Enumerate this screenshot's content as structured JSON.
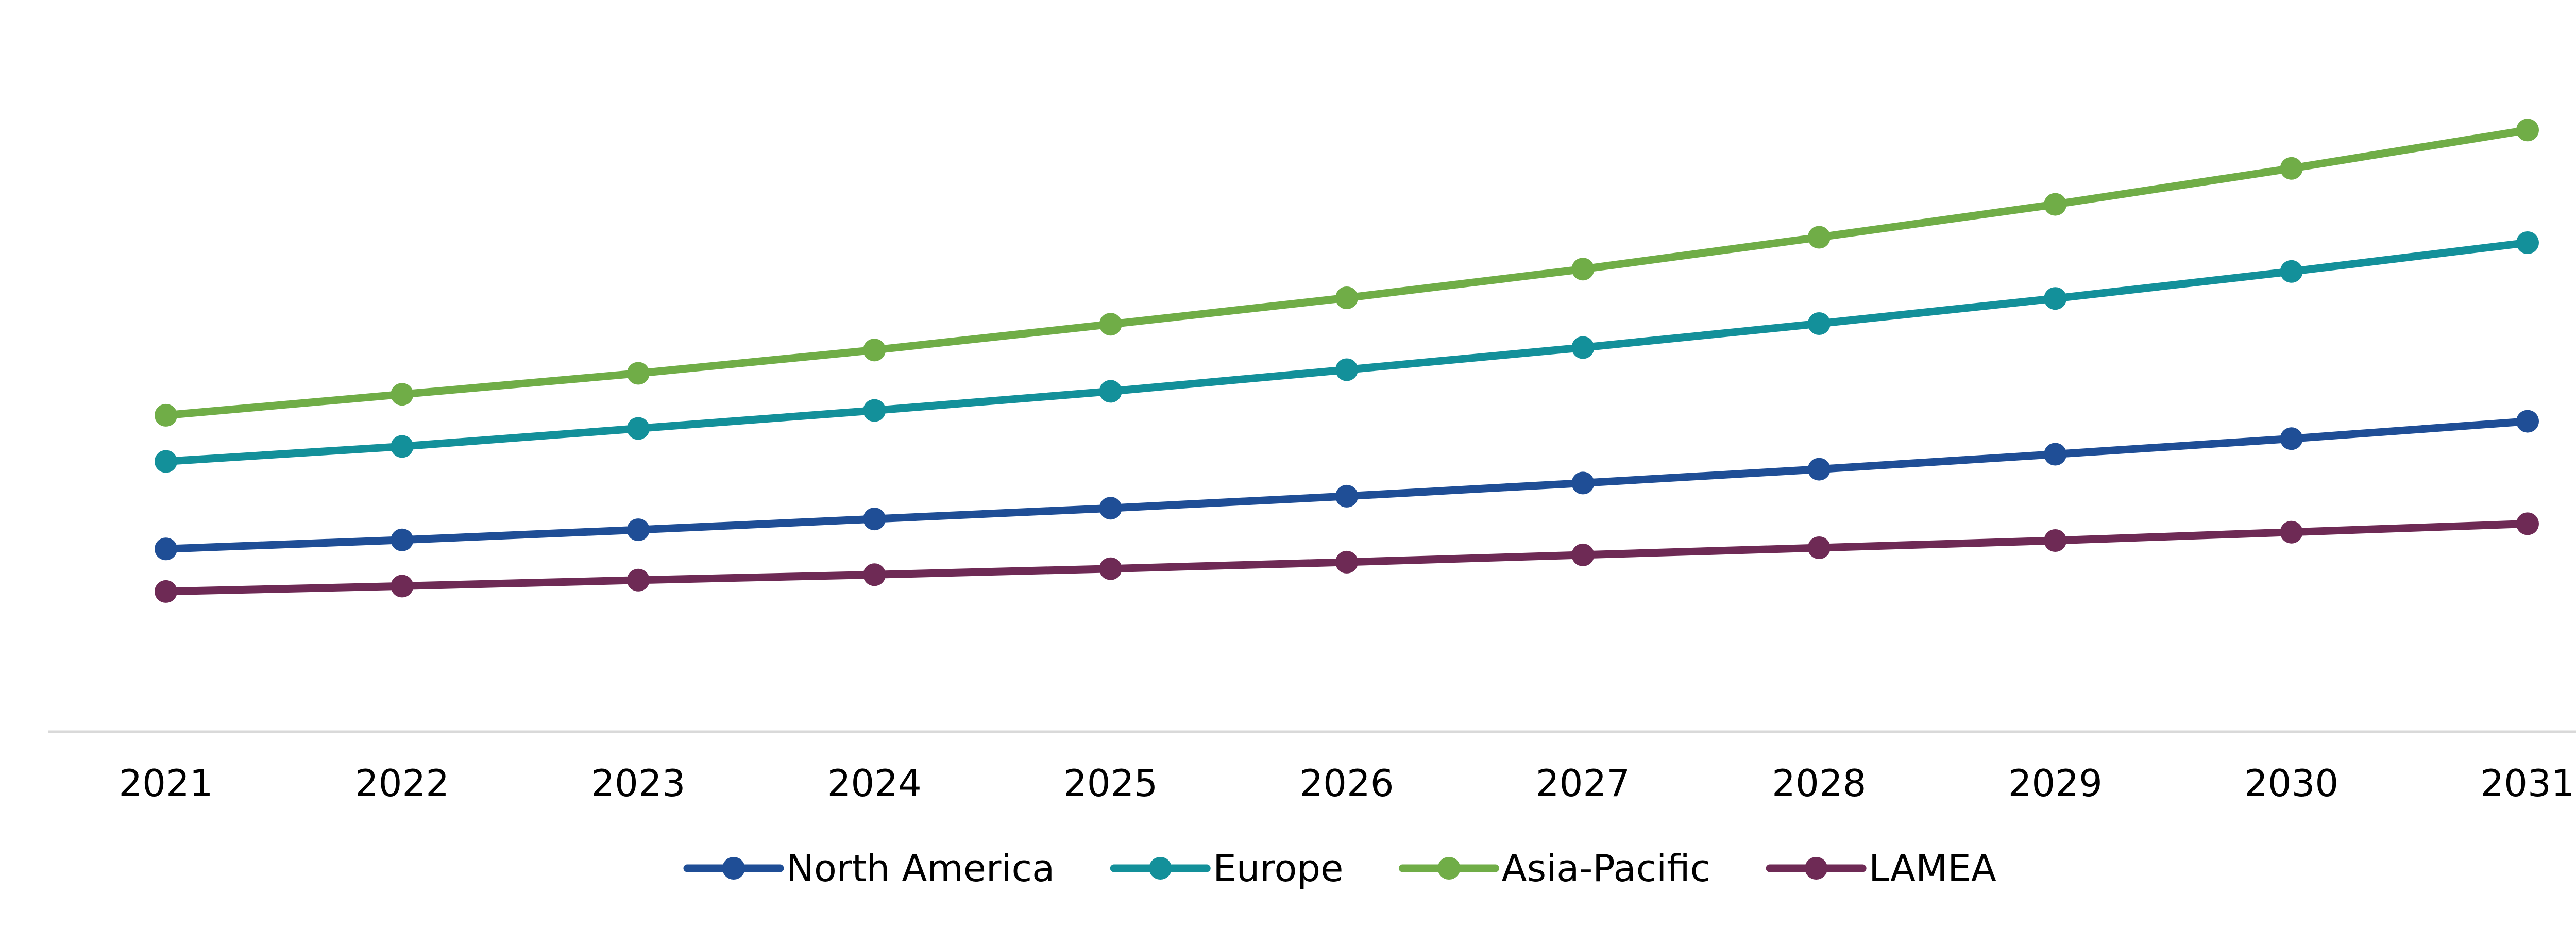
{
  "chart_data": {
    "type": "line",
    "title": "",
    "xlabel": "",
    "ylabel": "",
    "categories": [
      "2021",
      "2022",
      "2023",
      "2024",
      "2025",
      "2026",
      "2027",
      "2028",
      "2029",
      "2030",
      "2031"
    ],
    "ylim": [
      0,
      100
    ],
    "y_axis_visible": false,
    "grid": false,
    "legend": "bottom",
    "series": [
      {
        "name": "North America",
        "color": "#1F4E96",
        "values": [
          30.5,
          32.0,
          33.7,
          35.5,
          37.3,
          39.3,
          41.5,
          43.8,
          46.3,
          48.9,
          51.8
        ]
      },
      {
        "name": "Europe",
        "color": "#13909A",
        "values": [
          45.1,
          47.6,
          50.6,
          53.6,
          56.8,
          60.4,
          64.1,
          68.1,
          72.3,
          76.8,
          81.6
        ]
      },
      {
        "name": "Asia-Pacific",
        "color": "#70AD47",
        "values": [
          52.8,
          56.3,
          59.8,
          63.7,
          68.0,
          72.4,
          77.2,
          82.5,
          88.0,
          94.0,
          100.4
        ]
      },
      {
        "name": "LAMEA",
        "color": "#6E2A55",
        "values": [
          23.4,
          24.3,
          25.3,
          26.2,
          27.2,
          28.3,
          29.5,
          30.7,
          31.9,
          33.3,
          34.7
        ]
      }
    ]
  }
}
